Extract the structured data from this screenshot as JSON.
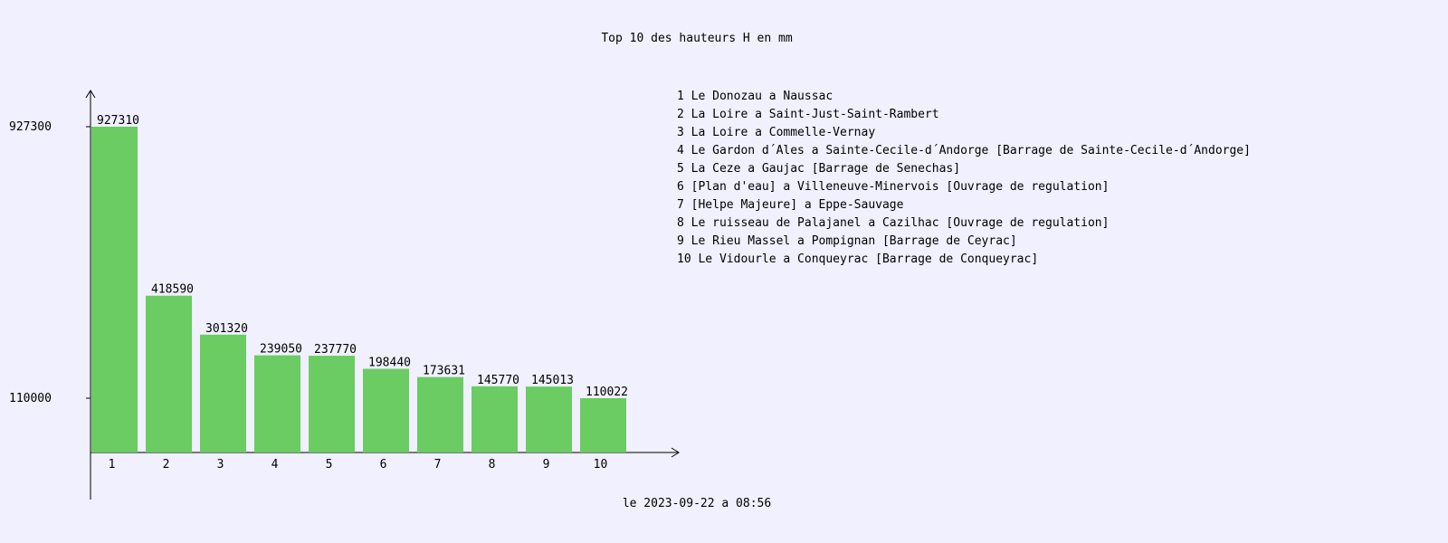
{
  "chart_data": {
    "type": "bar",
    "title": "Top 10 des hauteurs H en mm",
    "categories": [
      "1",
      "2",
      "3",
      "4",
      "5",
      "6",
      "7",
      "8",
      "9",
      "10"
    ],
    "values": [
      927310,
      418590,
      301320,
      239050,
      237770,
      198440,
      173631,
      145770,
      145013,
      110022
    ],
    "ytick_labels": [
      "927300",
      "110000"
    ],
    "yticks": [
      927300,
      110000
    ],
    "legend": [
      "1 Le Donozau a Naussac",
      "2 La Loire a Saint-Just-Saint-Rambert",
      "3 La Loire a Commelle-Vernay",
      "4 Le Gardon d´Ales a Sainte-Cecile-d´Andorge [Barrage de Sainte-Cecile-d´Andorge]",
      "5 La Ceze a Gaujac [Barrage de Senechas]",
      "6 [Plan d'eau] a Villeneuve-Minervois [Ouvrage de regulation]",
      "7 [Helpe Majeure] a Eppe-Sauvage",
      "8 Le ruisseau de Palajanel a Cazilhac [Ouvrage de regulation]",
      "9 Le Rieu Massel a Pompignan [Barrage de Ceyrac]",
      "10 Le Vidourle a Conqueyrac [Barrage de Conqueyrac]"
    ],
    "legend_placement": "top-right",
    "grid": false,
    "colors": {
      "bar": "#6acc62",
      "background": "#f0f0ff",
      "axis": "#000000"
    }
  },
  "footer": "le 2023-09-22 a 08:56"
}
